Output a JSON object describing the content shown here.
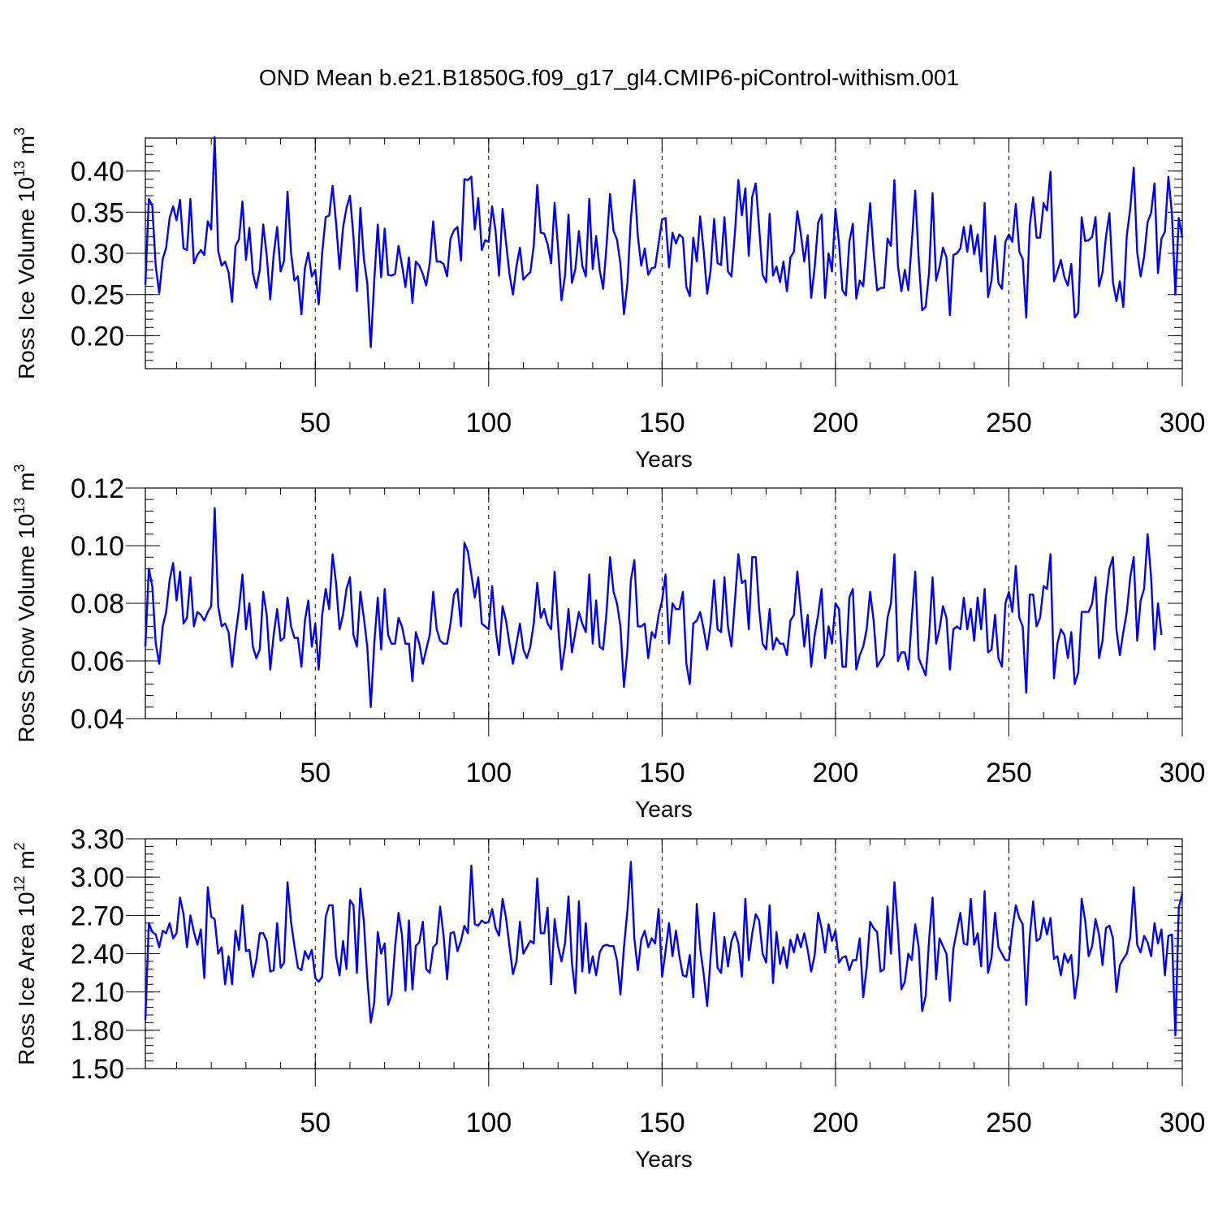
{
  "title": "OND Mean b.e21.B1850G.f09_g17_gl4.CMIP6-piControl-withism.001",
  "chart_data": [
    {
      "type": "line",
      "ylabel": "Ross Ice Volume 10",
      "ylabel_exp": "13",
      "ylabel_unit": " m",
      "ylabel_unit_exp": "3",
      "xlabel": "Years",
      "xlim": [
        1,
        300
      ],
      "ylim": [
        0.16,
        0.44
      ],
      "yticks": [
        0.2,
        0.25,
        0.3,
        0.35,
        0.4
      ],
      "ytick_labels": [
        "0.20",
        "0.25",
        "0.30",
        "0.35",
        "0.40"
      ],
      "xticks": [
        50,
        100,
        150,
        200,
        250,
        300
      ],
      "xtick_labels": [
        "50",
        "100",
        "150",
        "200",
        "250",
        "300"
      ],
      "grid": "dashed vertical at 50,100,150,200,250",
      "line_color": "#0000ff",
      "series": [
        {
          "values": [
            0.262,
            0.366,
            0.358,
            0.284,
            0.252,
            0.293,
            0.307,
            0.343,
            0.357,
            0.34,
            0.365,
            0.306,
            0.304,
            0.366,
            0.288,
            0.298,
            0.304,
            0.298,
            0.339,
            0.329,
            0.441,
            0.303,
            0.285,
            0.29,
            0.277,
            0.241,
            0.309,
            0.317,
            0.363,
            0.292,
            0.331,
            0.276,
            0.258,
            0.28,
            0.335,
            0.297,
            0.244,
            0.298,
            0.332,
            0.278,
            0.291,
            0.375,
            0.301,
            0.267,
            0.272,
            0.226,
            0.282,
            0.301,
            0.272,
            0.28,
            0.238,
            0.301,
            0.344,
            0.346,
            0.382,
            0.337,
            0.281,
            0.331,
            0.355,
            0.37,
            0.32,
            0.254,
            0.355,
            0.293,
            0.264,
            0.186,
            0.267,
            0.335,
            0.271,
            0.33,
            0.274,
            0.273,
            0.275,
            0.309,
            0.286,
            0.259,
            0.295,
            0.24,
            0.29,
            0.285,
            0.275,
            0.261,
            0.288,
            0.339,
            0.29,
            0.29,
            0.287,
            0.272,
            0.318,
            0.328,
            0.332,
            0.291,
            0.39,
            0.389,
            0.393,
            0.329,
            0.367,
            0.304,
            0.316,
            0.314,
            0.357,
            0.326,
            0.273,
            0.354,
            0.313,
            0.275,
            0.25,
            0.284,
            0.307,
            0.268,
            0.273,
            0.277,
            0.309,
            0.383,
            0.325,
            0.324,
            0.311,
            0.288,
            0.361,
            0.307,
            0.243,
            0.273,
            0.347,
            0.264,
            0.281,
            0.327,
            0.285,
            0.272,
            0.366,
            0.281,
            0.321,
            0.28,
            0.257,
            0.31,
            0.372,
            0.327,
            0.317,
            0.287,
            0.226,
            0.264,
            0.342,
            0.389,
            0.321,
            0.285,
            0.306,
            0.274,
            0.282,
            0.283,
            0.312,
            0.341,
            0.343,
            0.283,
            0.325,
            0.312,
            0.323,
            0.319,
            0.259,
            0.248,
            0.319,
            0.29,
            0.345,
            0.303,
            0.251,
            0.28,
            0.342,
            0.288,
            0.286,
            0.344,
            0.278,
            0.272,
            0.325,
            0.389,
            0.346,
            0.379,
            0.297,
            0.369,
            0.385,
            0.331,
            0.274,
            0.265,
            0.348,
            0.273,
            0.284,
            0.265,
            0.29,
            0.254,
            0.295,
            0.302,
            0.351,
            0.324,
            0.29,
            0.322,
            0.246,
            0.283,
            0.337,
            0.347,
            0.246,
            0.3,
            0.278,
            0.354,
            0.313,
            0.255,
            0.249,
            0.314,
            0.336,
            0.245,
            0.267,
            0.26,
            0.31,
            0.361,
            0.301,
            0.255,
            0.258,
            0.258,
            0.318,
            0.309,
            0.389,
            0.285,
            0.254,
            0.28,
            0.255,
            0.314,
            0.376,
            0.293,
            0.231,
            0.235,
            0.277,
            0.373,
            0.267,
            0.283,
            0.307,
            0.295,
            0.225,
            0.298,
            0.3,
            0.306,
            0.332,
            0.302,
            0.334,
            0.299,
            0.323,
            0.278,
            0.361,
            0.247,
            0.267,
            0.321,
            0.264,
            0.257,
            0.314,
            0.323,
            0.314,
            0.36,
            0.302,
            0.293,
            0.222,
            0.333,
            0.368,
            0.319,
            0.319,
            0.361,
            0.352,
            0.399,
            0.266,
            0.278,
            0.292,
            0.271,
            0.261,
            0.287,
            0.222,
            0.228,
            0.344,
            0.315,
            0.316,
            0.32,
            0.344,
            0.26,
            0.277,
            0.32,
            0.349,
            0.265,
            0.242,
            0.266,
            0.235,
            0.322,
            0.354,
            0.404,
            0.301,
            0.272,
            0.296,
            0.338,
            0.349,
            0.385,
            0.276,
            0.318,
            0.326,
            0.393,
            0.349,
            0.25,
            0.343,
            0.319
          ]
        }
      ]
    },
    {
      "type": "line",
      "ylabel": "Ross Snow Volume 10",
      "ylabel_exp": "13",
      "ylabel_unit": " m",
      "ylabel_unit_exp": "3",
      "xlabel": "Years",
      "xlim": [
        1,
        300
      ],
      "ylim": [
        0.04,
        0.12
      ],
      "yticks": [
        0.04,
        0.06,
        0.08,
        0.1,
        0.12
      ],
      "ytick_labels": [
        "0.04",
        "0.06",
        "0.08",
        "0.10",
        "0.12"
      ],
      "xticks": [
        50,
        100,
        150,
        200,
        250,
        300
      ],
      "xtick_labels": [
        "50",
        "100",
        "150",
        "200",
        "250",
        "300"
      ],
      "grid": "dashed vertical at 50,100,150,200,250",
      "line_color": "#0000ff",
      "series": [
        {
          "values": [
            0.065,
            0.092,
            0.086,
            0.066,
            0.059,
            0.072,
            0.077,
            0.088,
            0.094,
            0.081,
            0.091,
            0.073,
            0.075,
            0.089,
            0.072,
            0.077,
            0.076,
            0.074,
            0.077,
            0.079,
            0.113,
            0.079,
            0.072,
            0.073,
            0.07,
            0.058,
            0.069,
            0.078,
            0.09,
            0.071,
            0.08,
            0.065,
            0.061,
            0.064,
            0.084,
            0.076,
            0.057,
            0.069,
            0.078,
            0.067,
            0.068,
            0.082,
            0.072,
            0.068,
            0.068,
            0.058,
            0.074,
            0.081,
            0.065,
            0.073,
            0.057,
            0.076,
            0.085,
            0.078,
            0.097,
            0.087,
            0.071,
            0.076,
            0.085,
            0.089,
            0.069,
            0.065,
            0.084,
            0.075,
            0.065,
            0.044,
            0.066,
            0.082,
            0.064,
            0.085,
            0.069,
            0.066,
            0.066,
            0.075,
            0.072,
            0.066,
            0.066,
            0.053,
            0.07,
            0.066,
            0.059,
            0.064,
            0.069,
            0.084,
            0.071,
            0.067,
            0.066,
            0.066,
            0.073,
            0.083,
            0.085,
            0.072,
            0.101,
            0.098,
            0.09,
            0.082,
            0.089,
            0.073,
            0.072,
            0.071,
            0.086,
            0.071,
            0.062,
            0.079,
            0.074,
            0.066,
            0.059,
            0.066,
            0.073,
            0.064,
            0.061,
            0.065,
            0.073,
            0.087,
            0.075,
            0.078,
            0.073,
            0.071,
            0.091,
            0.073,
            0.057,
            0.065,
            0.078,
            0.063,
            0.07,
            0.077,
            0.073,
            0.07,
            0.09,
            0.066,
            0.081,
            0.065,
            0.064,
            0.077,
            0.096,
            0.084,
            0.08,
            0.072,
            0.051,
            0.064,
            0.088,
            0.095,
            0.072,
            0.072,
            0.073,
            0.061,
            0.07,
            0.068,
            0.076,
            0.081,
            0.09,
            0.066,
            0.08,
            0.078,
            0.078,
            0.084,
            0.059,
            0.052,
            0.073,
            0.074,
            0.077,
            0.071,
            0.064,
            0.073,
            0.088,
            0.071,
            0.07,
            0.089,
            0.072,
            0.065,
            0.081,
            0.097,
            0.087,
            0.088,
            0.071,
            0.096,
            0.096,
            0.078,
            0.066,
            0.064,
            0.078,
            0.064,
            0.068,
            0.066,
            0.066,
            0.062,
            0.074,
            0.076,
            0.091,
            0.078,
            0.065,
            0.076,
            0.058,
            0.069,
            0.076,
            0.085,
            0.061,
            0.072,
            0.066,
            0.08,
            0.078,
            0.058,
            0.058,
            0.082,
            0.085,
            0.057,
            0.062,
            0.065,
            0.071,
            0.084,
            0.074,
            0.058,
            0.06,
            0.062,
            0.075,
            0.08,
            0.097,
            0.06,
            0.063,
            0.063,
            0.057,
            0.075,
            0.091,
            0.061,
            0.058,
            0.055,
            0.069,
            0.089,
            0.066,
            0.071,
            0.079,
            0.075,
            0.057,
            0.071,
            0.072,
            0.071,
            0.082,
            0.071,
            0.078,
            0.067,
            0.082,
            0.071,
            0.085,
            0.063,
            0.064,
            0.076,
            0.061,
            0.058,
            0.08,
            0.084,
            0.077,
            0.093,
            0.075,
            0.072,
            0.049,
            0.083,
            0.083,
            0.072,
            0.075,
            0.086,
            0.085,
            0.097,
            0.054,
            0.066,
            0.071,
            0.069,
            0.061,
            0.07,
            0.052,
            0.056,
            0.077,
            0.077,
            0.077,
            0.08,
            0.089,
            0.061,
            0.067,
            0.082,
            0.092,
            0.096,
            0.071,
            0.062,
            0.07,
            0.077,
            0.089,
            0.096,
            0.067,
            0.081,
            0.085,
            0.104,
            0.089,
            0.064,
            0.08,
            0.069
          ]
        }
      ]
    },
    {
      "type": "line",
      "ylabel": "Ross Ice Area 10",
      "ylabel_exp": "12",
      "ylabel_unit": " m",
      "ylabel_unit_exp": "2",
      "xlabel": "Years",
      "xlim": [
        1,
        300
      ],
      "ylim": [
        1.5,
        3.3
      ],
      "yticks": [
        1.5,
        1.8,
        2.1,
        2.4,
        2.7,
        3.0,
        3.3
      ],
      "ytick_labels": [
        "1.50",
        "1.80",
        "2.10",
        "2.40",
        "2.70",
        "3.00",
        "3.30"
      ],
      "xticks": [
        50,
        100,
        150,
        200,
        250,
        300
      ],
      "xtick_labels": [
        "50",
        "100",
        "150",
        "200",
        "250",
        "300"
      ],
      "grid": "dashed vertical at 50,100,150,200,250",
      "line_color": "#0000ff",
      "series": [
        {
          "values": [
            1.88,
            2.64,
            2.57,
            2.55,
            2.45,
            2.58,
            2.56,
            2.64,
            2.52,
            2.56,
            2.84,
            2.71,
            2.45,
            2.7,
            2.57,
            2.47,
            2.59,
            2.21,
            2.92,
            2.69,
            2.67,
            2.4,
            2.45,
            2.16,
            2.38,
            2.16,
            2.58,
            2.43,
            2.78,
            2.42,
            2.43,
            2.22,
            2.35,
            2.56,
            2.56,
            2.5,
            2.26,
            2.27,
            2.64,
            2.29,
            2.33,
            2.96,
            2.65,
            2.46,
            2.29,
            2.27,
            2.42,
            2.36,
            2.43,
            2.21,
            2.18,
            2.22,
            2.69,
            2.78,
            2.78,
            2.38,
            2.23,
            2.5,
            2.28,
            2.82,
            2.78,
            2.25,
            2.91,
            2.65,
            2.21,
            1.86,
            2.02,
            2.57,
            2.4,
            2.48,
            2.0,
            2.08,
            2.45,
            2.72,
            2.55,
            2.11,
            2.66,
            2.12,
            2.46,
            2.49,
            2.65,
            2.28,
            2.25,
            2.45,
            2.48,
            2.77,
            2.54,
            2.2,
            2.56,
            2.57,
            2.42,
            2.5,
            2.62,
            2.56,
            3.09,
            2.63,
            2.62,
            2.66,
            2.64,
            2.65,
            2.75,
            2.6,
            2.54,
            2.83,
            2.68,
            2.46,
            2.24,
            2.34,
            2.65,
            2.4,
            2.45,
            2.5,
            2.48,
            2.99,
            2.56,
            2.56,
            2.76,
            2.16,
            2.67,
            2.46,
            2.34,
            2.48,
            2.85,
            2.33,
            2.09,
            2.81,
            2.26,
            2.64,
            2.25,
            2.38,
            2.23,
            2.41,
            2.46,
            2.47,
            2.46,
            2.46,
            2.35,
            2.08,
            2.45,
            2.74,
            3.12,
            2.52,
            2.27,
            2.51,
            2.58,
            2.45,
            2.52,
            2.48,
            2.75,
            2.22,
            2.42,
            2.64,
            2.38,
            2.58,
            2.38,
            2.23,
            2.22,
            2.39,
            2.06,
            2.79,
            2.44,
            2.24,
            1.99,
            2.38,
            2.72,
            2.29,
            2.25,
            2.53,
            2.3,
            2.5,
            2.57,
            2.48,
            2.22,
            2.83,
            2.35,
            2.56,
            2.71,
            2.66,
            2.4,
            2.33,
            2.78,
            2.17,
            2.57,
            2.32,
            2.45,
            2.29,
            2.51,
            2.41,
            2.55,
            2.45,
            2.56,
            2.43,
            2.26,
            2.39,
            2.72,
            2.6,
            2.41,
            2.63,
            2.5,
            2.58,
            2.33,
            2.37,
            2.38,
            2.27,
            2.35,
            2.35,
            2.52,
            2.06,
            2.29,
            2.65,
            2.6,
            2.57,
            2.26,
            2.28,
            2.77,
            2.4,
            2.96,
            2.58,
            2.12,
            2.18,
            2.4,
            2.35,
            2.63,
            2.45,
            1.95,
            2.07,
            2.51,
            2.84,
            2.2,
            2.52,
            2.46,
            2.4,
            2.03,
            2.44,
            2.58,
            2.72,
            2.48,
            2.47,
            2.83,
            2.47,
            2.56,
            2.3,
            2.89,
            2.25,
            2.37,
            2.72,
            2.45,
            2.4,
            2.35,
            2.35,
            2.59,
            2.78,
            2.68,
            2.63,
            2.0,
            2.53,
            2.81,
            2.5,
            2.52,
            2.68,
            2.55,
            2.68,
            2.36,
            2.38,
            2.23,
            2.4,
            2.33,
            2.39,
            2.05,
            2.24,
            2.83,
            2.66,
            2.38,
            2.46,
            2.67,
            2.55,
            2.31,
            2.6,
            2.62,
            2.52,
            2.1,
            2.31,
            2.36,
            2.4,
            2.53,
            2.92,
            2.47,
            2.41,
            2.54,
            2.49,
            2.38,
            2.64,
            2.48,
            2.59,
            2.23,
            2.54,
            2.55,
            1.76,
            2.76,
            2.87
          ]
        }
      ]
    }
  ]
}
